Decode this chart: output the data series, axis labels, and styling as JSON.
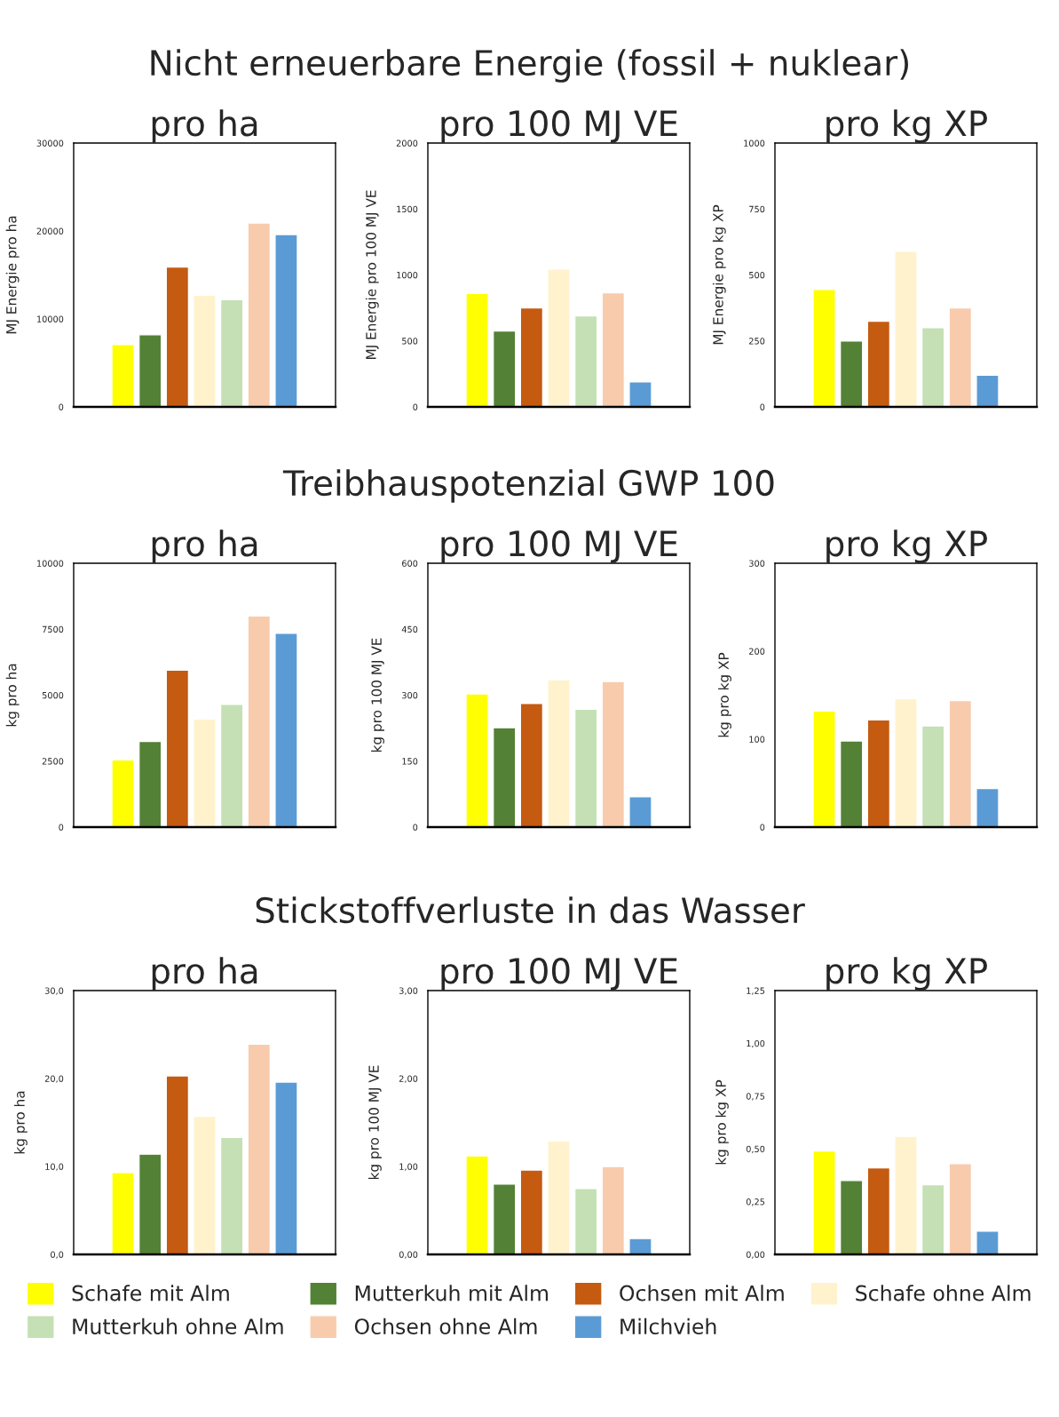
{
  "chart_data": [
    {
      "type": "bar",
      "title": "pro ha",
      "ylabel": "MJ Energie pro ha",
      "annotations": [
        "Nicht erneuerbare Energie (fossil + nuklear)"
      ],
      "categories": [
        null
      ],
      "ylim": [
        0,
        30000
      ],
      "yticks": [
        0,
        10000,
        20000,
        30000
      ],
      "tick_labels": "y",
      "series": [
        {
          "color": "#ffff00",
          "values": [
            7100
          ]
        },
        {
          "color": "#538135",
          "values": [
            8200
          ]
        },
        {
          "color": "#c55a11",
          "values": [
            15900
          ]
        },
        {
          "color": "#fff2cc",
          "values": [
            12700
          ]
        },
        {
          "color": "#c5e0b4",
          "values": [
            12200
          ]
        },
        {
          "color": "#f8cbad",
          "values": [
            20900
          ]
        },
        {
          "color": "#5b9bd5",
          "values": [
            19600
          ]
        }
      ]
    },
    {
      "type": "bar",
      "title": "pro 100 MJ VE",
      "ylabel": "MJ Energie pro 100 MJ VE",
      "categories": [
        null
      ],
      "ylim": [
        0,
        2000
      ],
      "yticks": [
        0,
        500,
        1000,
        1500,
        2000
      ],
      "tick_labels": "y",
      "series": [
        {
          "color": "#ffff00",
          "values": [
            860
          ]
        },
        {
          "color": "#538135",
          "values": [
            575
          ]
        },
        {
          "color": "#c55a11",
          "values": [
            750
          ]
        },
        {
          "color": "#fff2cc",
          "values": [
            1045
          ]
        },
        {
          "color": "#c5e0b4",
          "values": [
            690
          ]
        },
        {
          "color": "#f8cbad",
          "values": [
            865
          ]
        },
        {
          "color": "#5b9bd5",
          "values": [
            190
          ]
        }
      ]
    },
    {
      "type": "bar",
      "title": "pro kg XP",
      "ylabel": "MJ Energie pro kg XP",
      "categories": [
        null
      ],
      "ylim": [
        0,
        1000
      ],
      "yticks": [
        0,
        250,
        500,
        750,
        1000
      ],
      "tick_labels": "y",
      "series": [
        {
          "color": "#ffff00",
          "values": [
            445
          ]
        },
        {
          "color": "#538135",
          "values": [
            250
          ]
        },
        {
          "color": "#c55a11",
          "values": [
            325
          ]
        },
        {
          "color": "#fff2cc",
          "values": [
            590
          ]
        },
        {
          "color": "#c5e0b4",
          "values": [
            300
          ]
        },
        {
          "color": "#f8cbad",
          "values": [
            375
          ]
        },
        {
          "color": "#5b9bd5",
          "values": [
            120
          ]
        }
      ]
    },
    {
      "type": "bar",
      "title": "pro ha",
      "ylabel": "kg pro ha",
      "annotations": [
        "Treibhauspotenzial GWP 100"
      ],
      "categories": [
        null
      ],
      "ylim": [
        0,
        10000
      ],
      "yticks": [
        0,
        2500,
        5000,
        7500,
        10000
      ],
      "tick_labels": "y",
      "series": [
        {
          "color": "#ffff00",
          "values": [
            2550
          ]
        },
        {
          "color": "#538135",
          "values": [
            3250
          ]
        },
        {
          "color": "#c55a11",
          "values": [
            5950
          ]
        },
        {
          "color": "#fff2cc",
          "values": [
            4100
          ]
        },
        {
          "color": "#c5e0b4",
          "values": [
            4650
          ]
        },
        {
          "color": "#f8cbad",
          "values": [
            8000
          ]
        },
        {
          "color": "#5b9bd5",
          "values": [
            7350
          ]
        }
      ]
    },
    {
      "type": "bar",
      "title": "pro 100 MJ VE",
      "ylabel": "kg pro 100 MJ VE",
      "categories": [
        null
      ],
      "ylim": [
        0,
        600
      ],
      "yticks": [
        0,
        150,
        300,
        450,
        600
      ],
      "tick_labels": "y",
      "series": [
        {
          "color": "#ffff00",
          "values": [
            303
          ]
        },
        {
          "color": "#538135",
          "values": [
            226
          ]
        },
        {
          "color": "#c55a11",
          "values": [
            281
          ]
        },
        {
          "color": "#fff2cc",
          "values": [
            335
          ]
        },
        {
          "color": "#c5e0b4",
          "values": [
            268
          ]
        },
        {
          "color": "#f8cbad",
          "values": [
            331
          ]
        },
        {
          "color": "#5b9bd5",
          "values": [
            69
          ]
        }
      ]
    },
    {
      "type": "bar",
      "title": "pro kg XP",
      "ylabel": "kg pro kg XP",
      "categories": [
        null
      ],
      "ylim": [
        0,
        300
      ],
      "yticks": [
        0,
        100,
        200,
        300
      ],
      "tick_labels": "y",
      "series": [
        {
          "color": "#ffff00",
          "values": [
            132
          ]
        },
        {
          "color": "#538135",
          "values": [
            98
          ]
        },
        {
          "color": "#c55a11",
          "values": [
            122
          ]
        },
        {
          "color": "#fff2cc",
          "values": [
            146
          ]
        },
        {
          "color": "#c5e0b4",
          "values": [
            115
          ]
        },
        {
          "color": "#f8cbad",
          "values": [
            144
          ]
        },
        {
          "color": "#5b9bd5",
          "values": [
            44
          ]
        }
      ]
    },
    {
      "type": "bar",
      "title": "pro ha",
      "ylabel": "kg pro ha",
      "annotations": [
        "Stickstoffverluste in das Wasser"
      ],
      "categories": [
        null
      ],
      "ylim": [
        0,
        30
      ],
      "yticks": [
        {
          "value": 0,
          "label": "0,0"
        },
        {
          "value": 10,
          "label": "10,0"
        },
        {
          "value": 20,
          "label": "20,0"
        },
        {
          "value": 30,
          "label": "30,0"
        }
      ],
      "tick_labels": "y",
      "series": [
        {
          "color": "#ffff00",
          "values": [
            9.3
          ]
        },
        {
          "color": "#538135",
          "values": [
            11.4
          ]
        },
        {
          "color": "#c55a11",
          "values": [
            20.3
          ]
        },
        {
          "color": "#fff2cc",
          "values": [
            15.7
          ]
        },
        {
          "color": "#c5e0b4",
          "values": [
            13.3
          ]
        },
        {
          "color": "#f8cbad",
          "values": [
            23.9
          ]
        },
        {
          "color": "#5b9bd5",
          "values": [
            19.6
          ]
        }
      ]
    },
    {
      "type": "bar",
      "title": "pro 100 MJ VE",
      "ylabel": "kg pro 100 MJ VE",
      "categories": [
        null
      ],
      "ylim": [
        0,
        3
      ],
      "yticks": [
        {
          "value": 0,
          "label": "0,00"
        },
        {
          "value": 1,
          "label": "1,00"
        },
        {
          "value": 2,
          "label": "2,00"
        },
        {
          "value": 3,
          "label": "3,00"
        }
      ],
      "tick_labels": "y",
      "series": [
        {
          "color": "#ffff00",
          "values": [
            1.12
          ]
        },
        {
          "color": "#538135",
          "values": [
            0.8
          ]
        },
        {
          "color": "#c55a11",
          "values": [
            0.96
          ]
        },
        {
          "color": "#fff2cc",
          "values": [
            1.29
          ]
        },
        {
          "color": "#c5e0b4",
          "values": [
            0.75
          ]
        },
        {
          "color": "#f8cbad",
          "values": [
            1.0
          ]
        },
        {
          "color": "#5b9bd5",
          "values": [
            0.18
          ]
        }
      ]
    },
    {
      "type": "bar",
      "title": "pro kg XP",
      "ylabel": "kg pro kg XP",
      "legend": "bottom",
      "categories": [
        null
      ],
      "ylim": [
        0,
        1.25
      ],
      "yticks": [
        {
          "value": 0,
          "label": "0,00"
        },
        {
          "value": 0.25,
          "label": "0,25"
        },
        {
          "value": 0.5,
          "label": "0,50"
        },
        {
          "value": 0.75,
          "label": "0,75"
        },
        {
          "value": 1,
          "label": "1,00"
        },
        {
          "value": 1.25,
          "label": "1,25"
        }
      ],
      "tick_labels": "y",
      "series": [
        {
          "name": "Schafe mit Alm",
          "color": "#ffff00",
          "values": [
            0.49
          ]
        },
        {
          "name": "Mutterkuh mit Alm",
          "color": "#538135",
          "values": [
            0.35
          ]
        },
        {
          "name": "Ochsen mit Alm",
          "color": "#c55a11",
          "values": [
            0.41
          ]
        },
        {
          "name": "Schafe ohne Alm",
          "color": "#fff2cc",
          "values": [
            0.56
          ]
        },
        {
          "name": "Mutterkuh ohne Alm",
          "color": "#c5e0b4",
          "values": [
            0.33
          ]
        },
        {
          "name": "Ochsen ohne Alm",
          "color": "#f8cbad",
          "values": [
            0.43
          ]
        },
        {
          "name": "Milchvieh",
          "color": "#5b9bd5",
          "values": [
            0.11
          ]
        }
      ]
    }
  ]
}
